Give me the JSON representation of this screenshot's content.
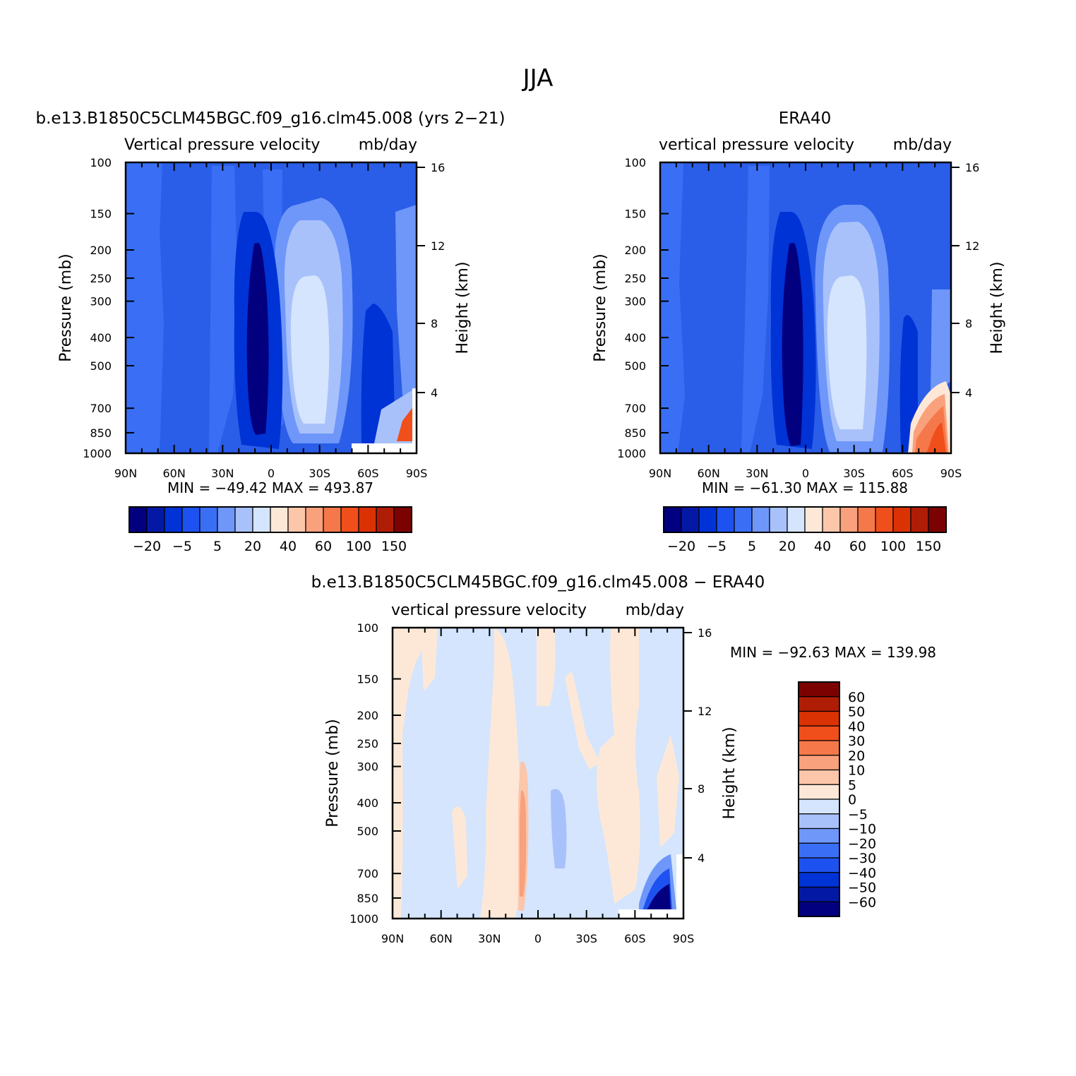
{
  "page_title": "JJA",
  "chart_data": [
    {
      "type": "heatmap",
      "title": "b.e13.B1850C5CLM45BGC.f09_g16.clm45.008 (yrs 2−21)",
      "subtitle_left": "Vertical pressure velocity",
      "subtitle_right": "mb/day",
      "ylabel": "Pressure (mb)",
      "ylabel_right": "Height (km)",
      "x_ticks": [
        "90N",
        "60N",
        "30N",
        "0",
        "30S",
        "60S",
        "90S"
      ],
      "y_ticks": [
        "100",
        "150",
        "200",
        "250",
        "300",
        "400",
        "500",
        "700",
        "850",
        "1000"
      ],
      "y_ticks_right": [
        "16",
        "12",
        "8",
        "4"
      ],
      "stats": "MIN = −49.42   MAX = 493.87",
      "colorbar_labels": [
        "−20",
        "−5",
        "5",
        "20",
        "40",
        "60",
        "100",
        "150"
      ],
      "colorbar_colors": [
        "#03007f",
        "#0319a5",
        "#0033d6",
        "#1e52f0",
        "#3a6ff5",
        "#6e97f9",
        "#a9c1fb",
        "#d4e5fd",
        "#fde8d8",
        "#fcc6aa",
        "#f9a07c",
        "#f5784a",
        "#f04e1b",
        "#db3203",
        "#b01d06",
        "#7c0202"
      ],
      "background_color": "#2a5ee8"
    },
    {
      "type": "heatmap",
      "title": "ERA40",
      "subtitle_left": "vertical pressure velocity",
      "subtitle_right": "mb/day",
      "ylabel": "Pressure (mb)",
      "ylabel_right": "Height (km)",
      "x_ticks": [
        "90N",
        "60N",
        "30N",
        "0",
        "30S",
        "60S",
        "90S"
      ],
      "y_ticks": [
        "100",
        "150",
        "200",
        "250",
        "300",
        "400",
        "500",
        "700",
        "850",
        "1000"
      ],
      "y_ticks_right": [
        "16",
        "12",
        "8",
        "4"
      ],
      "stats": "MIN = −61.30   MAX = 115.88",
      "colorbar_labels": [
        "−20",
        "−5",
        "5",
        "20",
        "40",
        "60",
        "100",
        "150"
      ],
      "colorbar_colors": [
        "#03007f",
        "#0319a5",
        "#0033d6",
        "#1e52f0",
        "#3a6ff5",
        "#6e97f9",
        "#a9c1fb",
        "#d4e5fd",
        "#fde8d8",
        "#fcc6aa",
        "#f9a07c",
        "#f5784a",
        "#f04e1b",
        "#db3203",
        "#b01d06",
        "#7c0202"
      ],
      "background_color": "#2a5ee8"
    },
    {
      "type": "heatmap",
      "title": "b.e13.B1850C5CLM45BGC.f09_g16.clm45.008 − ERA40",
      "subtitle_left": "vertical pressure velocity",
      "subtitle_right": "mb/day",
      "ylabel": "Pressure (mb)",
      "ylabel_right": "Height (km)",
      "x_ticks": [
        "90N",
        "60N",
        "30N",
        "0",
        "30S",
        "60S",
        "90S"
      ],
      "y_ticks": [
        "100",
        "150",
        "200",
        "250",
        "300",
        "400",
        "500",
        "700",
        "850",
        "1000"
      ],
      "y_ticks_right": [
        "16",
        "12",
        "8",
        "4"
      ],
      "stats": "MIN = −92.63   MAX = 139.98",
      "colorbar_labels": [
        "60",
        "50",
        "40",
        "30",
        "20",
        "10",
        "5",
        "0",
        "−5",
        "−10",
        "−20",
        "−30",
        "−40",
        "−50",
        "−60"
      ],
      "colorbar_colors": [
        "#7c0202",
        "#b01d06",
        "#db3203",
        "#f04e1b",
        "#f5784a",
        "#f9a07c",
        "#fcc6aa",
        "#fde8d8",
        "#d4e5fd",
        "#a9c1fb",
        "#6e97f9",
        "#3a6ff5",
        "#1e52f0",
        "#0033d6",
        "#0319a5",
        "#03007f"
      ],
      "background_color": "#d4e5fd"
    }
  ]
}
